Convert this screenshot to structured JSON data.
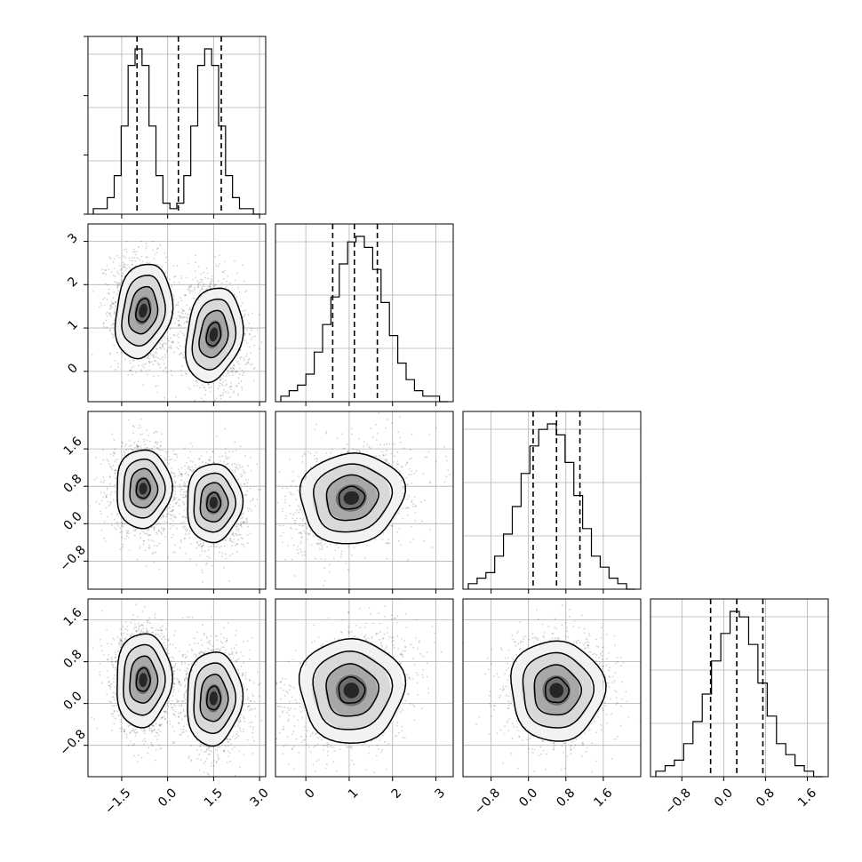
{
  "chart_data": {
    "type": "corner",
    "title": "",
    "n_params": 4,
    "params": [
      {
        "ticks": [
          -1.5,
          0.0,
          1.5,
          3.0
        ],
        "tick_labels": [
          "−1.5",
          "0.0",
          "1.5",
          "3.0"
        ],
        "range": [
          -2.6,
          3.2
        ],
        "quantiles": [
          -1.0,
          0.35,
          1.75
        ],
        "hist_counts": [
          1,
          1,
          3,
          7,
          16,
          27,
          30,
          27,
          16,
          7,
          2,
          1,
          2,
          7,
          16,
          27,
          30,
          27,
          16,
          7,
          3,
          1,
          1,
          0
        ],
        "hist_ymax": 30,
        "components": [
          {
            "weight": 0.5,
            "mean": -0.8,
            "sd": 0.42
          },
          {
            "weight": 0.5,
            "mean": 1.5,
            "sd": 0.42
          }
        ]
      },
      {
        "ticks": [
          0,
          1,
          2,
          3
        ],
        "tick_labels": [
          "0",
          "1",
          "2",
          "3"
        ],
        "range": [
          -0.7,
          3.4
        ],
        "quantiles": [
          0.62,
          1.12,
          1.65
        ],
        "hist_counts": [
          1,
          2,
          3,
          5,
          9,
          14,
          19,
          25,
          29,
          30,
          28,
          24,
          18,
          12,
          7,
          4,
          2,
          1,
          1,
          0
        ],
        "hist_ymax": 30
      },
      {
        "ticks": [
          -0.8,
          0.0,
          0.8,
          1.6
        ],
        "tick_labels": [
          "−0.8",
          "0.0",
          "0.8",
          "1.6"
        ],
        "range": [
          -1.4,
          2.4
        ],
        "quantiles": [
          0.1,
          0.6,
          1.1
        ],
        "hist_counts": [
          1,
          2,
          3,
          6,
          10,
          15,
          21,
          26,
          29,
          30,
          28,
          23,
          17,
          11,
          6,
          4,
          2,
          1,
          0
        ],
        "hist_ymax": 30
      },
      {
        "ticks": [
          -0.8,
          0.0,
          0.8,
          1.6
        ],
        "tick_labels": [
          "−0.8",
          "0.0",
          "0.8",
          "1.6"
        ],
        "range": [
          -1.4,
          2.0
        ],
        "quantiles": [
          -0.25,
          0.25,
          0.75
        ],
        "hist_counts": [
          1,
          2,
          3,
          6,
          10,
          15,
          21,
          26,
          30,
          29,
          24,
          17,
          11,
          6,
          4,
          2,
          1,
          0
        ],
        "hist_ymax": 30
      }
    ],
    "pair_blobs": {
      "1-0": [
        {
          "cx": -0.8,
          "cy": 1.4,
          "sx": 0.45,
          "sy": 0.55,
          "rho": -0.15
        },
        {
          "cx": 1.5,
          "cy": 0.85,
          "sx": 0.45,
          "sy": 0.55,
          "rho": -0.15
        }
      ],
      "2-0": [
        {
          "cx": -0.8,
          "cy": 0.75,
          "sx": 0.45,
          "sy": 0.42,
          "rho": -0.05
        },
        {
          "cx": 1.5,
          "cy": 0.45,
          "sx": 0.45,
          "sy": 0.42,
          "rho": -0.05
        }
      ],
      "2-1": [
        {
          "cx": 1.05,
          "cy": 0.55,
          "sx": 0.6,
          "sy": 0.48,
          "rho": 0.3
        }
      ],
      "3-0": [
        {
          "cx": -0.8,
          "cy": 0.45,
          "sx": 0.45,
          "sy": 0.45,
          "rho": -0.05
        },
        {
          "cx": 1.5,
          "cy": 0.1,
          "sx": 0.45,
          "sy": 0.45,
          "rho": -0.05
        }
      ],
      "3-1": [
        {
          "cx": 1.05,
          "cy": 0.25,
          "sx": 0.6,
          "sy": 0.5,
          "rho": 0.3
        }
      ],
      "3-2": [
        {
          "cx": 0.6,
          "cy": 0.25,
          "sx": 0.5,
          "sy": 0.48,
          "rho": 0.12
        }
      ]
    },
    "contour_levels_sigma": [
      0.5,
      1.0,
      1.5,
      2.0
    ],
    "grid": true
  }
}
